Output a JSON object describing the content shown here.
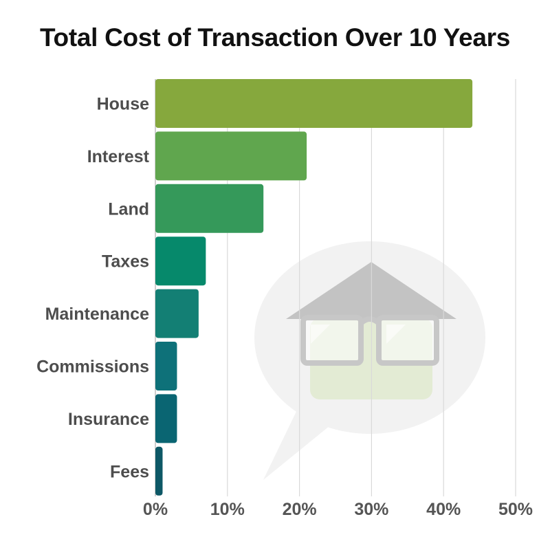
{
  "chart_data": {
    "type": "bar",
    "orientation": "horizontal",
    "title": "Total Cost of Transaction Over 10 Years",
    "xlabel": "",
    "ylabel": "",
    "categories": [
      "House",
      "Interest",
      "Land",
      "Taxes",
      "Maintenance",
      "Commissions",
      "Insurance",
      "Fees"
    ],
    "values": [
      44,
      21,
      15,
      7,
      6,
      3,
      3,
      1
    ],
    "unit": "%",
    "xlim": [
      0,
      50
    ],
    "xticks": [
      "0%",
      "10%",
      "20%",
      "30%",
      "40%",
      "50%"
    ],
    "grid": "vertical",
    "legend": "none",
    "bar_colors": [
      "#86a83d",
      "#60a64e",
      "#35995a",
      "#06896b",
      "#137f74",
      "#0e7179",
      "#0a6572",
      "#0d5866"
    ]
  },
  "illustration": {
    "icon": "house-with-glasses-icon",
    "bubble_color": "#f2f2f2",
    "roof_color": "#c3c3c3",
    "wall_color": "#e3ebd4",
    "glasses_color": "#c7c7c7"
  }
}
